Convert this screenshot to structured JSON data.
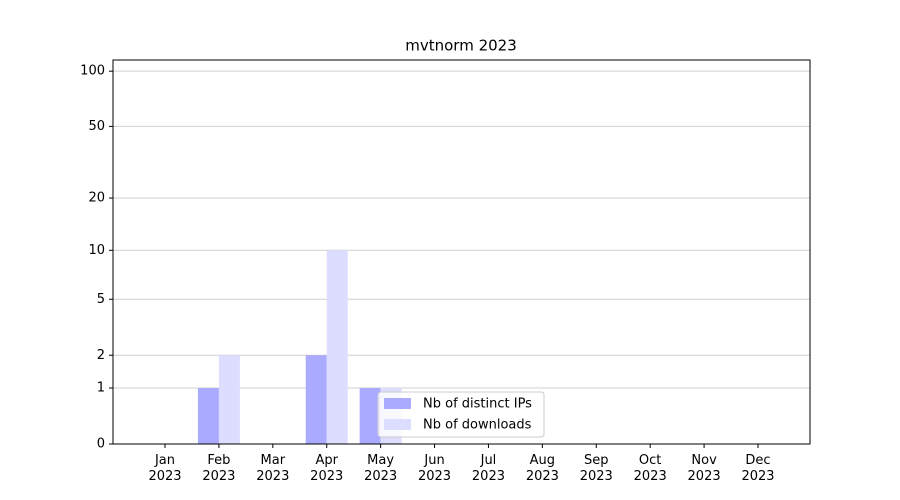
{
  "chart_data": {
    "type": "bar",
    "title": "mvtnorm 2023",
    "categories": [
      "Jan\n2023",
      "Feb\n2023",
      "Mar\n2023",
      "Apr\n2023",
      "May\n2023",
      "Jun\n2023",
      "Jul\n2023",
      "Aug\n2023",
      "Sep\n2023",
      "Oct\n2023",
      "Nov\n2023",
      "Dec\n2023"
    ],
    "series": [
      {
        "name": "Nb of distinct IPs",
        "color": "#aaaaff",
        "values": [
          0,
          1,
          0,
          2,
          1,
          0,
          0,
          0,
          0,
          0,
          0,
          0
        ]
      },
      {
        "name": "Nb of downloads",
        "color": "#ddddff",
        "values": [
          0,
          2,
          0,
          10,
          1,
          0,
          0,
          0,
          0,
          0,
          0,
          0
        ]
      }
    ],
    "ylim": [
      0,
      115
    ],
    "yticks": [
      0,
      1,
      2,
      5,
      10,
      20,
      50,
      100
    ],
    "yscale": "log1p",
    "grid": true,
    "legend": "lower center"
  }
}
